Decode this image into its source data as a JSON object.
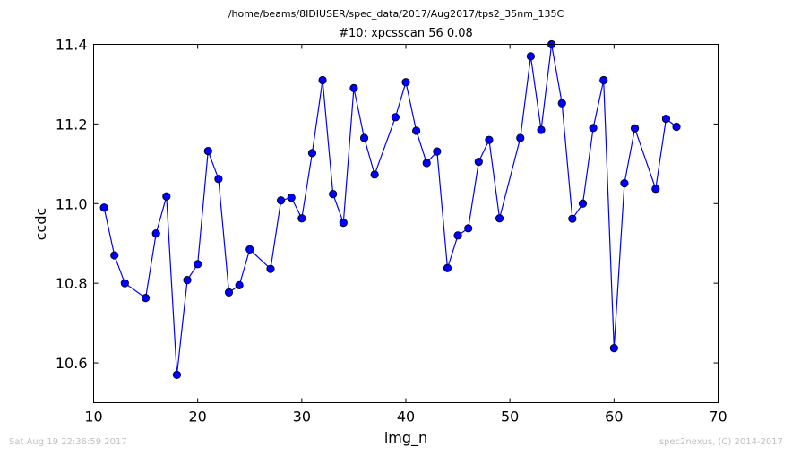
{
  "header": {
    "file_path": "/home/beams/8IDIUSER/spec_data/2017/Aug2017/tps2_35nm_135C"
  },
  "footer": {
    "timestamp": "Sat Aug 19 22:36:59 2017",
    "credit": "spec2nexus, (C) 2014-2017"
  },
  "chart_data": {
    "type": "line",
    "title": "#10: xpcsscan 56 0.08",
    "xlabel": "img_n",
    "ylabel": "ccdc",
    "xlim": [
      10,
      70
    ],
    "ylim": [
      10.5,
      11.4
    ],
    "xticks": [
      "10",
      "20",
      "30",
      "40",
      "50",
      "60",
      "70"
    ],
    "yticks": [
      "10.6",
      "10.8",
      "11.0",
      "11.2",
      "11.4"
    ],
    "grid": false,
    "line_color": "#0000ff",
    "marker_color": "#0000ff",
    "marker": "circle",
    "series": [
      {
        "x": [
          11,
          12,
          13,
          15,
          16,
          17,
          18,
          19,
          20,
          21,
          22,
          23,
          24,
          25,
          27,
          28,
          29,
          30,
          31,
          32,
          33,
          34,
          35,
          36,
          37,
          39,
          40,
          41,
          42,
          43,
          44,
          45,
          46,
          47,
          48,
          49,
          51,
          52,
          53,
          54,
          55,
          56,
          57,
          58,
          59,
          60,
          61,
          62,
          64,
          65,
          66
        ],
        "y": [
          10.99,
          10.87,
          10.8,
          10.763,
          10.925,
          11.018,
          10.57,
          10.808,
          10.848,
          11.132,
          11.062,
          10.777,
          10.795,
          10.885,
          10.836,
          11.008,
          11.015,
          10.963,
          11.127,
          11.31,
          11.024,
          10.952,
          11.29,
          11.165,
          11.073,
          11.217,
          11.305,
          11.183,
          11.102,
          11.131,
          10.838,
          10.92,
          10.938,
          11.105,
          11.16,
          10.963,
          11.165,
          11.37,
          11.185,
          11.4,
          11.252,
          10.962,
          11.0,
          11.19,
          11.31,
          10.637,
          11.051,
          11.189,
          11.037,
          11.213,
          11.193
        ]
      }
    ]
  }
}
